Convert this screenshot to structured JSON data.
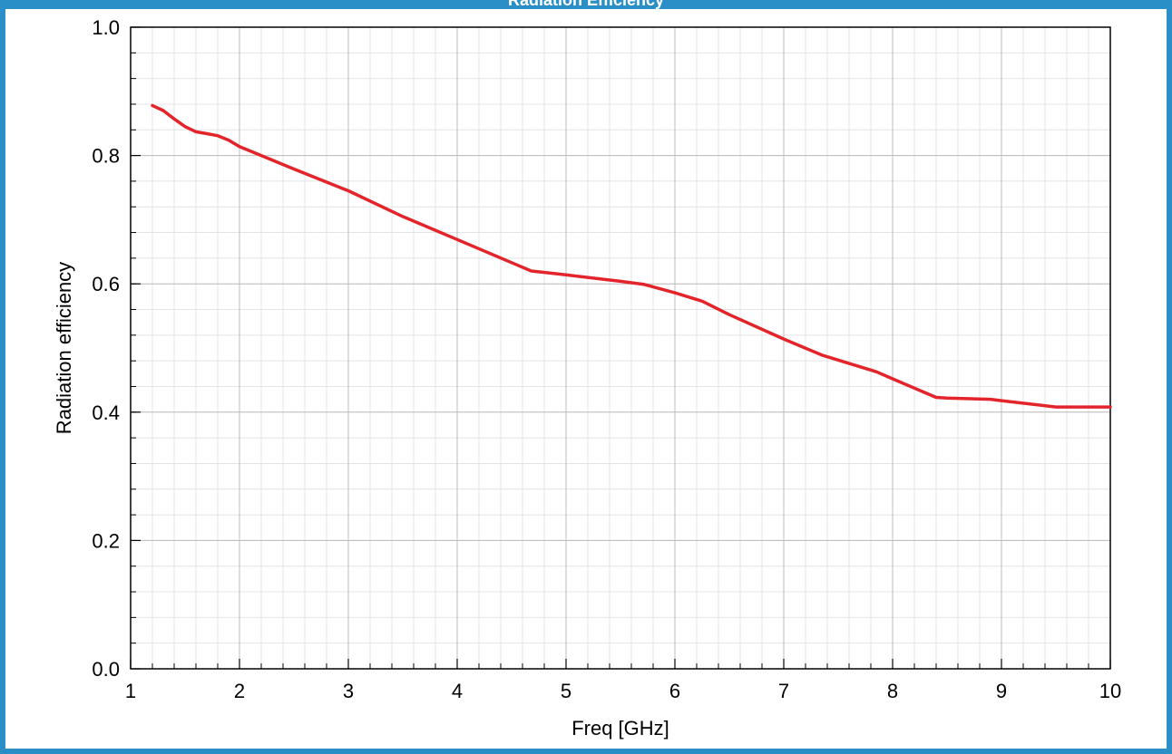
{
  "chart_data": {
    "type": "line",
    "title": "Radiation Efficiency",
    "xlabel": "Freq [GHz]",
    "ylabel": "Radiation efficiency",
    "xlim": [
      1,
      10
    ],
    "ylim": [
      0.0,
      1.0
    ],
    "x_ticks": [
      "1",
      "2",
      "3",
      "4",
      "5",
      "6",
      "7",
      "8",
      "9",
      "10"
    ],
    "y_ticks": [
      "0.0",
      "0.2",
      "0.4",
      "0.6",
      "0.8",
      "1.0"
    ],
    "grid": true,
    "series": [
      {
        "color": "#e3242b",
        "x": [
          1.2,
          1.3,
          1.4,
          1.5,
          1.6,
          1.7,
          1.8,
          1.9,
          2.0,
          2.5,
          3.0,
          3.5,
          4.0,
          4.5,
          4.68,
          5.0,
          5.5,
          5.72,
          6.0,
          6.25,
          6.5,
          7.0,
          7.35,
          7.85,
          8.0,
          8.4,
          8.5,
          8.9,
          9.0,
          9.5,
          10.0
        ],
        "y": [
          0.878,
          0.87,
          0.857,
          0.845,
          0.837,
          0.834,
          0.831,
          0.824,
          0.814,
          0.779,
          0.745,
          0.705,
          0.669,
          0.633,
          0.62,
          0.614,
          0.604,
          0.599,
          0.586,
          0.573,
          0.552,
          0.514,
          0.489,
          0.463,
          0.452,
          0.423,
          0.422,
          0.42,
          0.418,
          0.408,
          0.408
        ]
      }
    ]
  }
}
